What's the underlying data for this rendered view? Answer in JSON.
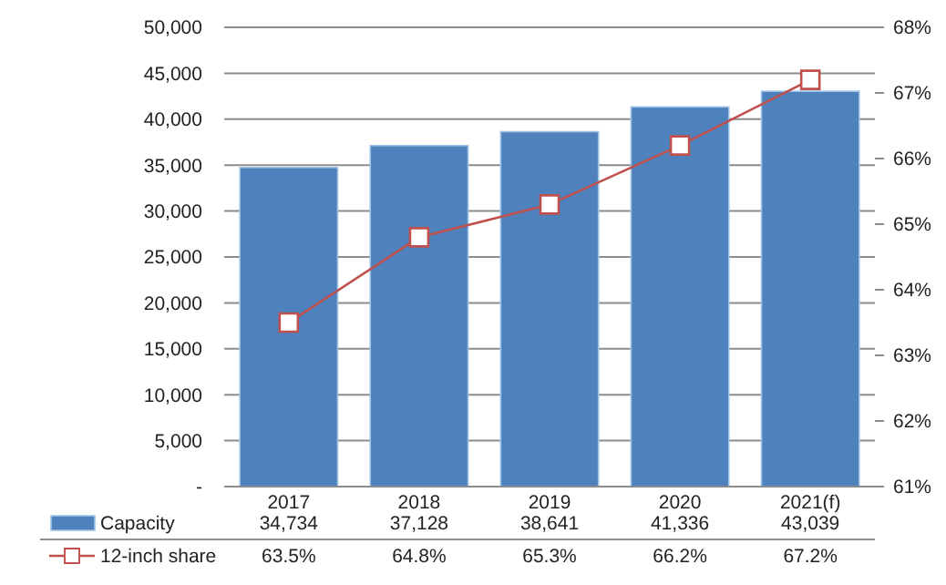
{
  "chart_data": {
    "type": "bar",
    "categories": [
      "2017",
      "2018",
      "2019",
      "2020",
      "2021(f)"
    ],
    "series": [
      {
        "name": "Capacity",
        "color": "#4f81bd",
        "values": [
          34734,
          37128,
          38641,
          41336,
          43039
        ],
        "value_labels": [
          "34,734",
          "37,128",
          "38,641",
          "41,336",
          "43,039"
        ]
      },
      {
        "name": "12-inch share",
        "type": "line",
        "axis": "y2",
        "color": "#c0504d",
        "marker": "square",
        "values": [
          63.5,
          64.8,
          65.3,
          66.2,
          67.2
        ],
        "value_labels": [
          "63.5%",
          "64.8%",
          "65.3%",
          "66.2%",
          "67.2%"
        ]
      }
    ],
    "ylim": [
      0,
      50000
    ],
    "yticks": [
      {
        "value": 0,
        "label": "-"
      },
      {
        "value": 5000,
        "label": "5,000"
      },
      {
        "value": 10000,
        "label": "10,000"
      },
      {
        "value": 15000,
        "label": "15,000"
      },
      {
        "value": 20000,
        "label": "20,000"
      },
      {
        "value": 25000,
        "label": "25,000"
      },
      {
        "value": 30000,
        "label": "30,000"
      },
      {
        "value": 35000,
        "label": "35,000"
      },
      {
        "value": 40000,
        "label": "40,000"
      },
      {
        "value": 45000,
        "label": "45,000"
      },
      {
        "value": 50000,
        "label": "50,000"
      }
    ],
    "y2lim": [
      61,
      68
    ],
    "y2ticks": [
      {
        "value": 61,
        "label": "61%"
      },
      {
        "value": 62,
        "label": "62%"
      },
      {
        "value": 63,
        "label": "63%"
      },
      {
        "value": 64,
        "label": "64%"
      },
      {
        "value": 65,
        "label": "65%"
      },
      {
        "value": 66,
        "label": "66%"
      },
      {
        "value": 67,
        "label": "67%"
      },
      {
        "value": 68,
        "label": "68%"
      }
    ],
    "grid": "y",
    "legend": "bottom"
  }
}
